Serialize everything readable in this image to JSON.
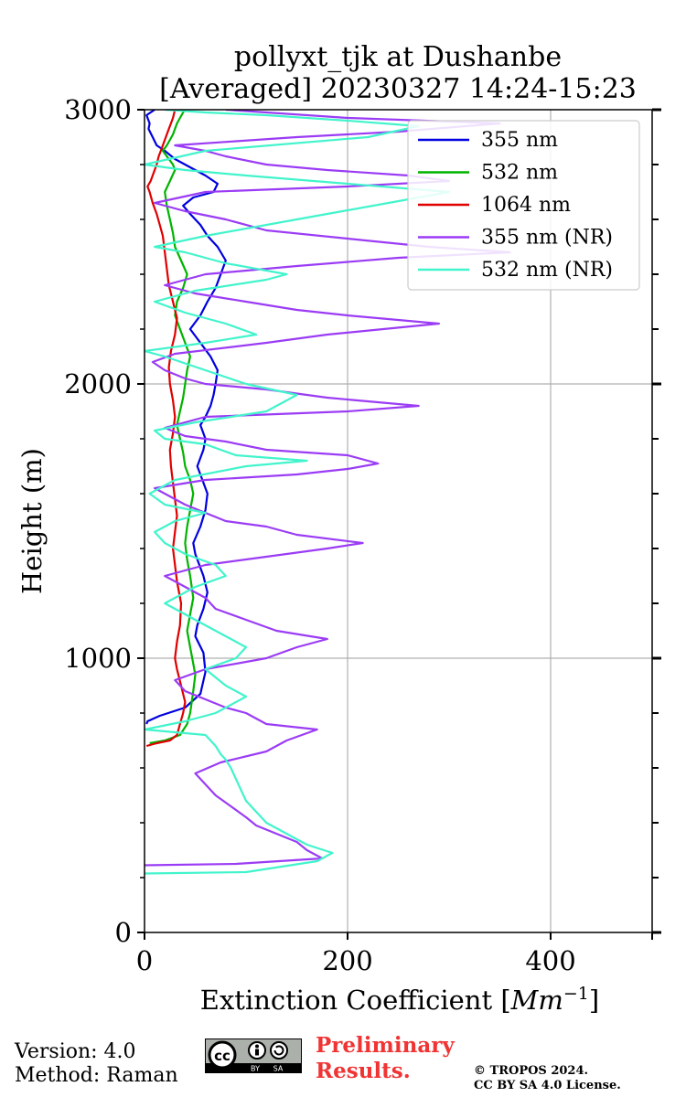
{
  "chart_data": {
    "type": "line",
    "title": "pollyxt_tjk at Dushanbe",
    "subtitle": "[Averaged] 20230327 14:24-15:23",
    "xlabel": "Extinction Coefficient [",
    "xlabel_unit": "Mm",
    "xlabel_exp": "−1",
    "xlabel_end": "]",
    "ylabel": "Height (m)",
    "xlim": [
      0,
      500
    ],
    "ylim": [
      0,
      3000
    ],
    "xticks": [
      0,
      200,
      400
    ],
    "xtick_labels": [
      "0",
      "200",
      "400"
    ],
    "yticks": [
      0,
      1000,
      2000,
      3000
    ],
    "ytick_labels": [
      "0",
      "1000",
      "2000",
      "3000"
    ],
    "grid": true,
    "legend_position": "top-right",
    "series": [
      {
        "name": "355 nm",
        "color": "#0000e0",
        "x": [
          2,
          3,
          15,
          40,
          55,
          60,
          58,
          50,
          52,
          58,
          62,
          58,
          50,
          48,
          55,
          60,
          62,
          58,
          52,
          58,
          60,
          55,
          60,
          65,
          68,
          70,
          72,
          65,
          55,
          45,
          55,
          62,
          70,
          75,
          80,
          72,
          62,
          55,
          45,
          38,
          48,
          68,
          72,
          60,
          45,
          30,
          20,
          12,
          8,
          4,
          5,
          2,
          10
        ],
        "y": [
          760,
          770,
          790,
          820,
          870,
          950,
          1020,
          1080,
          1120,
          1180,
          1240,
          1300,
          1380,
          1420,
          1480,
          1540,
          1600,
          1640,
          1700,
          1760,
          1800,
          1850,
          1880,
          1920,
          1960,
          2000,
          2050,
          2100,
          2150,
          2200,
          2250,
          2300,
          2350,
          2400,
          2450,
          2500,
          2540,
          2580,
          2620,
          2650,
          2680,
          2700,
          2730,
          2760,
          2790,
          2820,
          2850,
          2870,
          2900,
          2930,
          2950,
          2980,
          3000
        ]
      },
      {
        "name": "532 nm",
        "color": "#00b400",
        "x": [
          5,
          20,
          35,
          42,
          45,
          48,
          50,
          48,
          45,
          42,
          45,
          48,
          45,
          42,
          40,
          42,
          45,
          48,
          45,
          40,
          38,
          35,
          32,
          35,
          38,
          40,
          42,
          45,
          40,
          35,
          30,
          32,
          38,
          42,
          36,
          30,
          28,
          25,
          22,
          20,
          25,
          30,
          28,
          22,
          18,
          22,
          25,
          28,
          30,
          32,
          35,
          38,
          40
        ],
        "y": [
          690,
          700,
          720,
          760,
          800,
          880,
          940,
          980,
          1040,
          1100,
          1160,
          1220,
          1300,
          1360,
          1420,
          1480,
          1540,
          1600,
          1650,
          1700,
          1750,
          1800,
          1850,
          1900,
          1950,
          2000,
          2050,
          2100,
          2150,
          2200,
          2250,
          2300,
          2350,
          2400,
          2450,
          2500,
          2550,
          2600,
          2650,
          2700,
          2740,
          2780,
          2800,
          2830,
          2850,
          2870,
          2890,
          2910,
          2930,
          2950,
          2970,
          2990,
          3000
        ]
      },
      {
        "name": "1064 nm",
        "color": "#e00000",
        "x": [
          2,
          12,
          25,
          32,
          35,
          38,
          40,
          36,
          32,
          30,
          32,
          35,
          36,
          32,
          30,
          28,
          30,
          32,
          30,
          28,
          26,
          25,
          28,
          30,
          28,
          25,
          24,
          26,
          30,
          32,
          28,
          24,
          22,
          20,
          18,
          15,
          12,
          8,
          5,
          3,
          6,
          10,
          12,
          14,
          16,
          18,
          20,
          22,
          24,
          26,
          28,
          30
        ],
        "y": [
          680,
          690,
          700,
          720,
          760,
          800,
          840,
          900,
          960,
          1000,
          1060,
          1120,
          1200,
          1280,
          1340,
          1400,
          1460,
          1520,
          1580,
          1640,
          1700,
          1760,
          1820,
          1880,
          1940,
          2000,
          2060,
          2120,
          2180,
          2240,
          2300,
          2360,
          2420,
          2480,
          2540,
          2580,
          2620,
          2660,
          2700,
          2720,
          2740,
          2780,
          2800,
          2830,
          2850,
          2870,
          2890,
          2910,
          2930,
          2950,
          2970,
          3000
        ]
      },
      {
        "name": "355 nm (NR)",
        "color": "#9b3cf5",
        "x": [
          0,
          90,
          175,
          160,
          150,
          130,
          110,
          100,
          85,
          70,
          60,
          50,
          75,
          120,
          140,
          170,
          120,
          100,
          80,
          60,
          40,
          30,
          60,
          120,
          150,
          180,
          130,
          100,
          70,
          60,
          40,
          20,
          60,
          120,
          180,
          215,
          150,
          120,
          80,
          60,
          40,
          20,
          10,
          60,
          150,
          200,
          230,
          200,
          120,
          80,
          40,
          20,
          60,
          200,
          270,
          180,
          120,
          60,
          40,
          20,
          8,
          30,
          120,
          180,
          290,
          200,
          150,
          100,
          50,
          20,
          60,
          150,
          250,
          360,
          280,
          200,
          120,
          80,
          40,
          10,
          60,
          200,
          300,
          260,
          180,
          120,
          80,
          60,
          30,
          150,
          250,
          350,
          200,
          120,
          80
        ],
        "y": [
          245,
          250,
          270,
          300,
          330,
          360,
          390,
          420,
          460,
          500,
          540,
          580,
          620,
          660,
          700,
          740,
          760,
          800,
          820,
          850,
          880,
          920,
          960,
          1000,
          1040,
          1070,
          1100,
          1140,
          1180,
          1220,
          1260,
          1300,
          1340,
          1370,
          1400,
          1420,
          1450,
          1480,
          1500,
          1530,
          1560,
          1600,
          1620,
          1650,
          1670,
          1690,
          1710,
          1740,
          1760,
          1790,
          1810,
          1840,
          1880,
          1900,
          1920,
          1950,
          1980,
          2000,
          2020,
          2050,
          2080,
          2110,
          2150,
          2180,
          2220,
          2250,
          2270,
          2300,
          2330,
          2360,
          2400,
          2430,
          2460,
          2480,
          2500,
          2530,
          2560,
          2600,
          2630,
          2660,
          2700,
          2720,
          2740,
          2760,
          2780,
          2800,
          2830,
          2850,
          2870,
          2900,
          2920,
          2950,
          2970,
          2990,
          3000
        ]
      },
      {
        "name": "532 nm (NR)",
        "color": "#42f4cc",
        "x": [
          0,
          100,
          170,
          185,
          160,
          140,
          120,
          110,
          100,
          95,
          90,
          85,
          80,
          75,
          70,
          65,
          60,
          0,
          40,
          70,
          100,
          80,
          60,
          90,
          100,
          80,
          60,
          40,
          20,
          50,
          80,
          70,
          40,
          20,
          10,
          30,
          60,
          20,
          5,
          30,
          100,
          160,
          90,
          60,
          20,
          10,
          50,
          120,
          150,
          100,
          60,
          20,
          0,
          60,
          110,
          80,
          40,
          10,
          50,
          120,
          140,
          80,
          40,
          10,
          60,
          180,
          300,
          200,
          100,
          40,
          0,
          60,
          220,
          270,
          200,
          120,
          60,
          20
        ],
        "y": [
          215,
          220,
          260,
          290,
          320,
          360,
          400,
          440,
          480,
          520,
          560,
          600,
          630,
          650,
          680,
          700,
          720,
          740,
          770,
          800,
          860,
          900,
          960,
          1000,
          1040,
          1080,
          1120,
          1160,
          1200,
          1260,
          1300,
          1340,
          1380,
          1420,
          1460,
          1500,
          1530,
          1560,
          1600,
          1650,
          1700,
          1720,
          1740,
          1780,
          1800,
          1830,
          1860,
          1900,
          1960,
          2000,
          2050,
          2100,
          2120,
          2150,
          2180,
          2220,
          2260,
          2300,
          2340,
          2380,
          2400,
          2440,
          2480,
          2500,
          2540,
          2620,
          2700,
          2730,
          2760,
          2780,
          2800,
          2850,
          2900,
          2940,
          2960,
          2980,
          2990,
          3000
        ]
      }
    ]
  },
  "footer": {
    "version": "Version: 4.0",
    "method": "Method: Raman",
    "prelim_line1": "Preliminary",
    "prelim_line2": "Results.",
    "copyright1": "© TROPOS 2024.",
    "copyright2": "CC BY SA 4.0 License.",
    "cc_text": "cc",
    "cc_by": "BY",
    "cc_sa": "SA"
  }
}
